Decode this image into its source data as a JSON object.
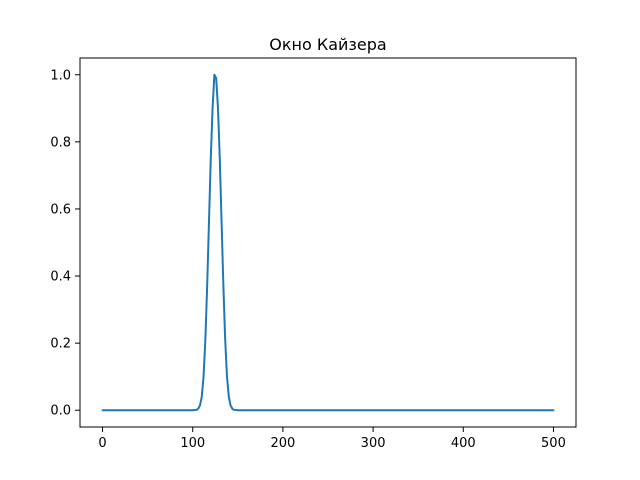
{
  "chart_data": {
    "type": "line",
    "title": "Окно Кайзера",
    "xlabel": "",
    "ylabel": "",
    "xlim": [
      -25,
      525
    ],
    "ylim": [
      -0.05,
      1.05
    ],
    "x_ticks": [
      0,
      100,
      200,
      300,
      400,
      500
    ],
    "y_ticks": [
      0.0,
      0.2,
      0.4,
      0.6,
      0.8,
      1.0
    ],
    "x_tick_labels": [
      "0",
      "100",
      "200",
      "300",
      "400",
      "500"
    ],
    "y_tick_labels": [
      "0.0",
      "0.2",
      "0.4",
      "0.6",
      "0.8",
      "1.0"
    ],
    "grid": false,
    "series": [
      {
        "color": "#1f77b4",
        "x": [
          0,
          100,
          104,
          106,
          108,
          110,
          112,
          114,
          116,
          118,
          120,
          122,
          124,
          126,
          128,
          130,
          132,
          134,
          136,
          138,
          140,
          142,
          144,
          146,
          150,
          500
        ],
        "y": [
          0.0,
          0.0,
          0.001,
          0.004,
          0.014,
          0.04,
          0.1,
          0.21,
          0.37,
          0.56,
          0.75,
          0.9,
          1.0,
          0.99,
          0.9,
          0.75,
          0.56,
          0.37,
          0.21,
          0.1,
          0.04,
          0.014,
          0.004,
          0.001,
          0.0,
          0.0
        ]
      }
    ]
  }
}
